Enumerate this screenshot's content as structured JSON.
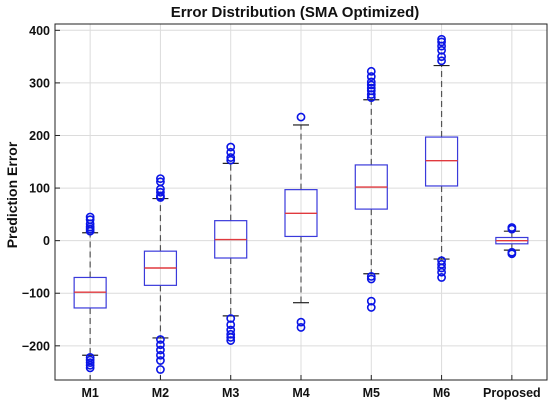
{
  "chart_data": {
    "type": "box",
    "title": "Error Distribution (SMA Optimized)",
    "xlabel": "",
    "ylabel": "Prediction Error",
    "ylim": [
      -265,
      412
    ],
    "yticks": [
      -200,
      -100,
      0,
      100,
      200,
      300,
      400
    ],
    "grid": true,
    "colors": {
      "box": "#3a3adb",
      "median": "#e0393e",
      "whisker": "#555555",
      "outlier": "#0a14e6",
      "grid": "#dcdcdc"
    },
    "categories": [
      "M1",
      "M2",
      "M3",
      "M4",
      "M5",
      "M6",
      "Proposed"
    ],
    "boxes": [
      {
        "name": "M1",
        "q1": -128,
        "median": -98,
        "q3": -70,
        "whisker_low": -218,
        "whisker_high": 15,
        "outliers": [
          45,
          40,
          32,
          26,
          22,
          18,
          -222,
          -227,
          -232,
          -237,
          -242
        ]
      },
      {
        "name": "M2",
        "q1": -85,
        "median": -52,
        "q3": -20,
        "whisker_low": -185,
        "whisker_high": 80,
        "outliers": [
          118,
          112,
          98,
          92,
          85,
          82,
          -188,
          -198,
          -208,
          -218,
          -228,
          -245
        ]
      },
      {
        "name": "M3",
        "q1": -33,
        "median": 2,
        "q3": 38,
        "whisker_low": -143,
        "whisker_high": 147,
        "outliers": [
          178,
          168,
          158,
          153,
          -148,
          -160,
          -170,
          -178,
          -184,
          -190
        ]
      },
      {
        "name": "M4",
        "q1": 8,
        "median": 52,
        "q3": 97,
        "whisker_low": -118,
        "whisker_high": 220,
        "outliers": [
          235,
          -155,
          -165
        ]
      },
      {
        "name": "M5",
        "q1": 60,
        "median": 102,
        "q3": 144,
        "whisker_low": -63,
        "whisker_high": 268,
        "outliers": [
          322,
          312,
          302,
          296,
          290,
          285,
          278,
          272,
          -68,
          -73,
          -115,
          -127
        ]
      },
      {
        "name": "M6",
        "q1": 104,
        "median": 152,
        "q3": 197,
        "whisker_low": -35,
        "whisker_high": 333,
        "outliers": [
          383,
          378,
          370,
          362,
          350,
          342,
          -38,
          -45,
          -52,
          -60,
          -70
        ]
      },
      {
        "name": "Proposed",
        "q1": -6,
        "median": 0,
        "q3": 6,
        "whisker_low": -18,
        "whisker_high": 18,
        "outliers": [
          25,
          22,
          -22,
          -25
        ]
      }
    ]
  }
}
